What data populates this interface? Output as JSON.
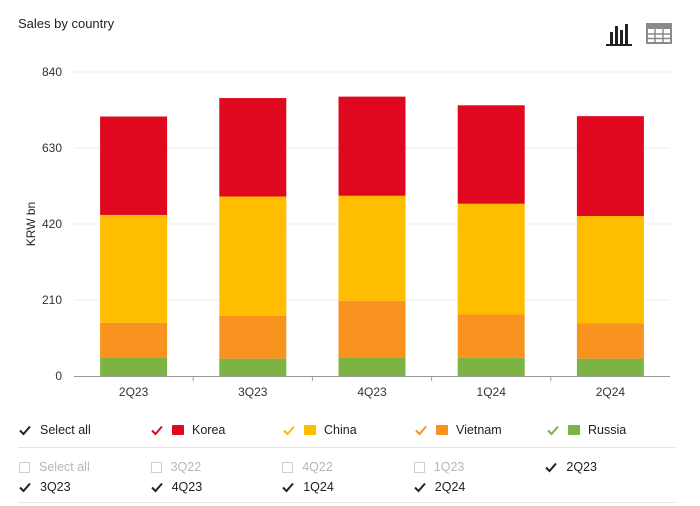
{
  "title": "Sales by country",
  "view_icons": [
    "bar-chart-icon",
    "table-icon"
  ],
  "colors": {
    "Korea": "#e0081f",
    "China": "#ffbd00",
    "Vietnam": "#f7931e",
    "Russia": "#7cb342",
    "axis": "#999999",
    "grid": "#ececec"
  },
  "chart_data": {
    "type": "bar",
    "stacked": true,
    "categories": [
      "2Q23",
      "3Q23",
      "4Q23",
      "1Q24",
      "2Q24"
    ],
    "series": [
      {
        "name": "Russia",
        "values": [
          52,
          48,
          52,
          50,
          48
        ]
      },
      {
        "name": "Vietnam",
        "values": [
          95,
          118,
          156,
          120,
          98
        ]
      },
      {
        "name": "China",
        "values": [
          298,
          330,
          290,
          306,
          296
        ]
      },
      {
        "name": "Korea",
        "values": [
          272,
          272,
          274,
          272,
          276
        ]
      }
    ],
    "title": "",
    "xlabel": "",
    "ylabel": "KRW bn",
    "ylim": [
      0,
      840
    ],
    "yticks": [
      0,
      210,
      420,
      630,
      840
    ],
    "grid": true,
    "legend": "bottom"
  },
  "legend": {
    "select_all": "Select all",
    "series": [
      "Korea",
      "China",
      "Vietnam",
      "Russia"
    ]
  },
  "periods": {
    "select_all": "Select all",
    "items": [
      {
        "label": "3Q22",
        "state": "disabled"
      },
      {
        "label": "4Q22",
        "state": "disabled"
      },
      {
        "label": "1Q23",
        "state": "disabled"
      },
      {
        "label": "2Q23",
        "state": "checked"
      },
      {
        "label": "3Q23",
        "state": "checked"
      },
      {
        "label": "4Q23",
        "state": "checked"
      },
      {
        "label": "1Q24",
        "state": "checked"
      },
      {
        "label": "2Q24",
        "state": "checked"
      }
    ]
  }
}
